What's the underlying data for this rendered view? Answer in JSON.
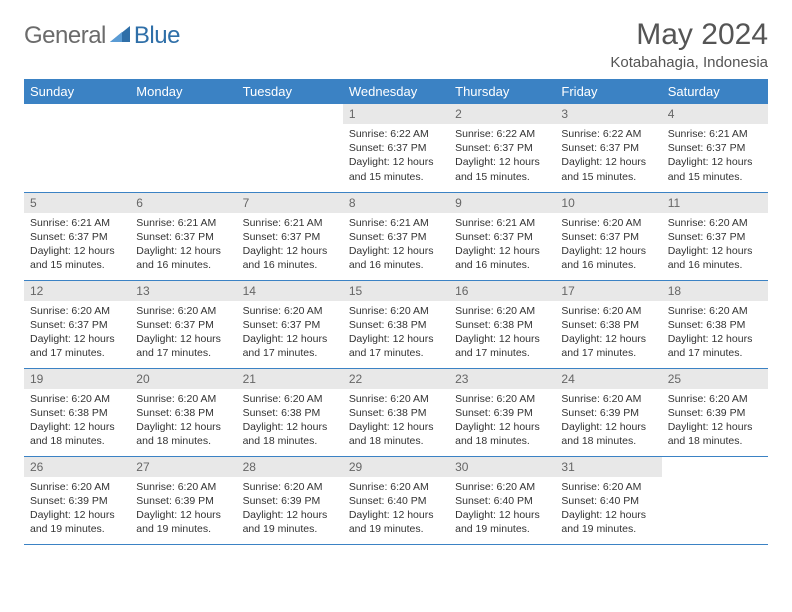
{
  "brand": {
    "part1": "General",
    "part2": "Blue",
    "icon_color": "#2f6fa8"
  },
  "title": "May 2024",
  "location": "Kotabahagia, Indonesia",
  "header_bg": "#3b82c4",
  "daynum_bg": "#e8e8e8",
  "border_color": "#3b82c4",
  "day_names": [
    "Sunday",
    "Monday",
    "Tuesday",
    "Wednesday",
    "Thursday",
    "Friday",
    "Saturday"
  ],
  "weeks": [
    [
      {
        "n": "",
        "sr": "",
        "ss": "",
        "dl": ""
      },
      {
        "n": "",
        "sr": "",
        "ss": "",
        "dl": ""
      },
      {
        "n": "",
        "sr": "",
        "ss": "",
        "dl": ""
      },
      {
        "n": "1",
        "sr": "6:22 AM",
        "ss": "6:37 PM",
        "dl": "12 hours and 15 minutes."
      },
      {
        "n": "2",
        "sr": "6:22 AM",
        "ss": "6:37 PM",
        "dl": "12 hours and 15 minutes."
      },
      {
        "n": "3",
        "sr": "6:22 AM",
        "ss": "6:37 PM",
        "dl": "12 hours and 15 minutes."
      },
      {
        "n": "4",
        "sr": "6:21 AM",
        "ss": "6:37 PM",
        "dl": "12 hours and 15 minutes."
      }
    ],
    [
      {
        "n": "5",
        "sr": "6:21 AM",
        "ss": "6:37 PM",
        "dl": "12 hours and 15 minutes."
      },
      {
        "n": "6",
        "sr": "6:21 AM",
        "ss": "6:37 PM",
        "dl": "12 hours and 16 minutes."
      },
      {
        "n": "7",
        "sr": "6:21 AM",
        "ss": "6:37 PM",
        "dl": "12 hours and 16 minutes."
      },
      {
        "n": "8",
        "sr": "6:21 AM",
        "ss": "6:37 PM",
        "dl": "12 hours and 16 minutes."
      },
      {
        "n": "9",
        "sr": "6:21 AM",
        "ss": "6:37 PM",
        "dl": "12 hours and 16 minutes."
      },
      {
        "n": "10",
        "sr": "6:20 AM",
        "ss": "6:37 PM",
        "dl": "12 hours and 16 minutes."
      },
      {
        "n": "11",
        "sr": "6:20 AM",
        "ss": "6:37 PM",
        "dl": "12 hours and 16 minutes."
      }
    ],
    [
      {
        "n": "12",
        "sr": "6:20 AM",
        "ss": "6:37 PM",
        "dl": "12 hours and 17 minutes."
      },
      {
        "n": "13",
        "sr": "6:20 AM",
        "ss": "6:37 PM",
        "dl": "12 hours and 17 minutes."
      },
      {
        "n": "14",
        "sr": "6:20 AM",
        "ss": "6:37 PM",
        "dl": "12 hours and 17 minutes."
      },
      {
        "n": "15",
        "sr": "6:20 AM",
        "ss": "6:38 PM",
        "dl": "12 hours and 17 minutes."
      },
      {
        "n": "16",
        "sr": "6:20 AM",
        "ss": "6:38 PM",
        "dl": "12 hours and 17 minutes."
      },
      {
        "n": "17",
        "sr": "6:20 AM",
        "ss": "6:38 PM",
        "dl": "12 hours and 17 minutes."
      },
      {
        "n": "18",
        "sr": "6:20 AM",
        "ss": "6:38 PM",
        "dl": "12 hours and 17 minutes."
      }
    ],
    [
      {
        "n": "19",
        "sr": "6:20 AM",
        "ss": "6:38 PM",
        "dl": "12 hours and 18 minutes."
      },
      {
        "n": "20",
        "sr": "6:20 AM",
        "ss": "6:38 PM",
        "dl": "12 hours and 18 minutes."
      },
      {
        "n": "21",
        "sr": "6:20 AM",
        "ss": "6:38 PM",
        "dl": "12 hours and 18 minutes."
      },
      {
        "n": "22",
        "sr": "6:20 AM",
        "ss": "6:38 PM",
        "dl": "12 hours and 18 minutes."
      },
      {
        "n": "23",
        "sr": "6:20 AM",
        "ss": "6:39 PM",
        "dl": "12 hours and 18 minutes."
      },
      {
        "n": "24",
        "sr": "6:20 AM",
        "ss": "6:39 PM",
        "dl": "12 hours and 18 minutes."
      },
      {
        "n": "25",
        "sr": "6:20 AM",
        "ss": "6:39 PM",
        "dl": "12 hours and 18 minutes."
      }
    ],
    [
      {
        "n": "26",
        "sr": "6:20 AM",
        "ss": "6:39 PM",
        "dl": "12 hours and 19 minutes."
      },
      {
        "n": "27",
        "sr": "6:20 AM",
        "ss": "6:39 PM",
        "dl": "12 hours and 19 minutes."
      },
      {
        "n": "28",
        "sr": "6:20 AM",
        "ss": "6:39 PM",
        "dl": "12 hours and 19 minutes."
      },
      {
        "n": "29",
        "sr": "6:20 AM",
        "ss": "6:40 PM",
        "dl": "12 hours and 19 minutes."
      },
      {
        "n": "30",
        "sr": "6:20 AM",
        "ss": "6:40 PM",
        "dl": "12 hours and 19 minutes."
      },
      {
        "n": "31",
        "sr": "6:20 AM",
        "ss": "6:40 PM",
        "dl": "12 hours and 19 minutes."
      },
      {
        "n": "",
        "sr": "",
        "ss": "",
        "dl": ""
      }
    ]
  ],
  "labels": {
    "sunrise": "Sunrise:",
    "sunset": "Sunset:",
    "daylight": "Daylight:"
  }
}
